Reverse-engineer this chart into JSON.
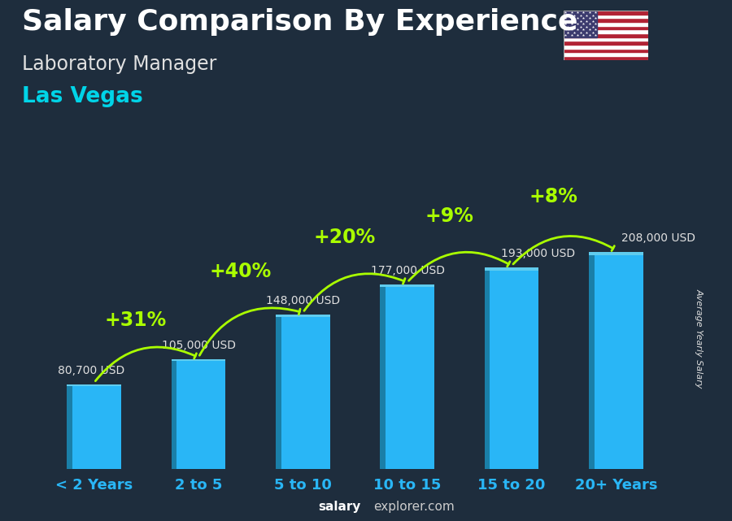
{
  "title": "Salary Comparison By Experience",
  "subtitle1": "Laboratory Manager",
  "subtitle2": "Las Vegas",
  "ylabel": "Average Yearly Salary",
  "categories": [
    "< 2 Years",
    "2 to 5",
    "5 to 10",
    "10 to 15",
    "15 to 20",
    "20+ Years"
  ],
  "values": [
    80700,
    105000,
    148000,
    177000,
    193000,
    208000
  ],
  "labels": [
    "80,700 USD",
    "105,000 USD",
    "148,000 USD",
    "177,000 USD",
    "193,000 USD",
    "208,000 USD"
  ],
  "pct_labels": [
    "+31%",
    "+40%",
    "+20%",
    "+9%",
    "+8%"
  ],
  "bar_color": "#29b6f6",
  "bar_shadow_color": "#1a7fa8",
  "background_color": "#1e2d3d",
  "title_color": "#ffffff",
  "subtitle1_color": "#e0e0e0",
  "subtitle2_color": "#00d4e8",
  "label_color": "#e0e0e0",
  "pct_color": "#aaff00",
  "xlabel_color": "#29b6f6",
  "arrow_color": "#aaff00",
  "footer_salary_color": "#ffffff",
  "footer_explorer_color": "#ffffff",
  "ylim": [
    0,
    260000
  ],
  "title_fontsize": 26,
  "subtitle1_fontsize": 17,
  "subtitle2_fontsize": 19,
  "label_fontsize": 10,
  "pct_fontsize": 17,
  "xlabel_fontsize": 13,
  "ylabel_fontsize": 8
}
